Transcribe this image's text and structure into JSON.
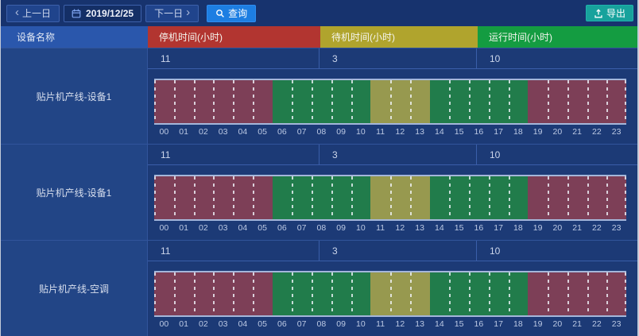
{
  "toolbar": {
    "prev_label": "上一日",
    "date_value": "2019/12/25",
    "next_label": "下一日",
    "query_label": "查询",
    "export_label": "导出",
    "icons": [
      "chevron-left-icon",
      "calendar-icon",
      "chevron-right-icon",
      "search-icon",
      "export-icon"
    ]
  },
  "table": {
    "device_column_header": "设备名称",
    "metric_headers": [
      {
        "key": "stop",
        "label": "停机时间(小时)",
        "color": "#b23530"
      },
      {
        "key": "standby",
        "label": "待机时间(小时)",
        "color": "#b0a42d"
      },
      {
        "key": "run",
        "label": "运行时间(小时)",
        "color": "#149c41"
      }
    ],
    "hours": [
      "00",
      "01",
      "02",
      "03",
      "04",
      "05",
      "06",
      "07",
      "08",
      "09",
      "10",
      "11",
      "12",
      "13",
      "14",
      "15",
      "16",
      "17",
      "18",
      "19",
      "20",
      "21",
      "22",
      "23"
    ],
    "rows": [
      {
        "device": "贴片机产线-设备1",
        "values": {
          "stop": "11",
          "standby": "3",
          "run": "10"
        },
        "segments": [
          {
            "state": "stop",
            "start": 0,
            "end": 6
          },
          {
            "state": "run",
            "start": 6,
            "end": 11
          },
          {
            "state": "standby",
            "start": 11,
            "end": 14
          },
          {
            "state": "run",
            "start": 14,
            "end": 19
          },
          {
            "state": "stop",
            "start": 19,
            "end": 24
          }
        ]
      },
      {
        "device": "贴片机产线-设备1",
        "values": {
          "stop": "11",
          "standby": "3",
          "run": "10"
        },
        "segments": [
          {
            "state": "stop",
            "start": 0,
            "end": 6
          },
          {
            "state": "run",
            "start": 6,
            "end": 11
          },
          {
            "state": "standby",
            "start": 11,
            "end": 14
          },
          {
            "state": "run",
            "start": 14,
            "end": 19
          },
          {
            "state": "stop",
            "start": 19,
            "end": 24
          }
        ]
      },
      {
        "device": "贴片机产线-空调",
        "values": {
          "stop": "11",
          "standby": "3",
          "run": "10"
        },
        "segments": [
          {
            "state": "stop",
            "start": 0,
            "end": 6
          },
          {
            "state": "run",
            "start": 6,
            "end": 11
          },
          {
            "state": "standby",
            "start": 11,
            "end": 14
          },
          {
            "state": "run",
            "start": 14,
            "end": 19
          },
          {
            "state": "stop",
            "start": 19,
            "end": 24
          }
        ]
      }
    ]
  },
  "colors": {
    "stop_bar": "#7d3f57",
    "standby_bar": "#97994f",
    "run_bar": "#217c4b",
    "query_button": "#1d7ee2",
    "export_button": "#17a29c",
    "background": "#1d3b78"
  }
}
